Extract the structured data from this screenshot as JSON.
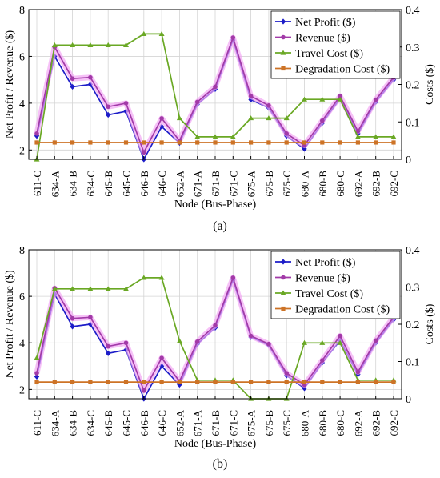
{
  "nodes": [
    "611-C",
    "634-A",
    "634-B",
    "634-C",
    "645-B",
    "645-C",
    "646-B",
    "646-C",
    "652-A",
    "671-A",
    "671-B",
    "671-C",
    "675-A",
    "675-B",
    "675-C",
    "680-A",
    "680-B",
    "680-C",
    "692-A",
    "692-B",
    "692-C"
  ],
  "colors": {
    "net_profit": "#1c1cc8",
    "revenue": "#a23aa8",
    "travel_cost": "#6aa824",
    "degradation_cost": "#cd7326",
    "glow": "#f2a6f4"
  },
  "chart_data": [
    {
      "type": "line",
      "panel_label": "(a)",
      "xlabel": "Node (Bus-Phase)",
      "ylabel_left": "Net Profit / Revenue ($)",
      "ylabel_right": "Costs ($)",
      "ylim_left": [
        1.6,
        8
      ],
      "ylim_right": [
        0,
        0.4
      ],
      "yticks_left": [
        "2",
        "4",
        "6",
        "8"
      ],
      "yticks_right": [
        "0",
        "0.1",
        "0.2",
        "0.3",
        "0.4"
      ],
      "grid": true,
      "legend": "top-right",
      "series": [
        {
          "name": "Net Profit ($)",
          "axis": "left",
          "marker": "diamond",
          "values": [
            2.6,
            6.0,
            4.7,
            4.8,
            3.5,
            3.65,
            1.6,
            3.0,
            2.3,
            3.95,
            4.6,
            6.7,
            4.15,
            3.8,
            2.6,
            2.05,
            3.15,
            4.2,
            2.7,
            4.05,
            5.0
          ]
        },
        {
          "name": "Revenue ($)",
          "axis": "left",
          "marker": "circle",
          "values": [
            2.7,
            6.4,
            5.05,
            5.1,
            3.85,
            4.0,
            1.9,
            3.35,
            2.4,
            4.05,
            4.7,
            6.8,
            4.3,
            3.9,
            2.7,
            2.2,
            3.25,
            4.3,
            2.8,
            4.15,
            5.1
          ]
        },
        {
          "name": "Travel Cost ($)",
          "axis": "right",
          "marker": "triangle",
          "values": [
            0.0,
            0.305,
            0.305,
            0.305,
            0.305,
            0.305,
            0.335,
            0.335,
            0.11,
            0.06,
            0.06,
            0.06,
            0.11,
            0.11,
            0.11,
            0.16,
            0.16,
            0.16,
            0.06,
            0.06,
            0.06
          ]
        },
        {
          "name": "Degradation Cost ($)",
          "axis": "right",
          "marker": "square",
          "values": [
            0.045,
            0.045,
            0.045,
            0.045,
            0.045,
            0.045,
            0.045,
            0.045,
            0.045,
            0.045,
            0.045,
            0.045,
            0.045,
            0.045,
            0.045,
            0.045,
            0.045,
            0.045,
            0.045,
            0.045,
            0.045
          ]
        }
      ]
    },
    {
      "type": "line",
      "panel_label": "(b)",
      "xlabel": "Node (Bus-Phase)",
      "ylabel_left": "Net Profit / Revenue ($)",
      "ylabel_right": "Costs ($)",
      "ylim_left": [
        1.6,
        8
      ],
      "ylim_right": [
        0,
        0.4
      ],
      "yticks_left": [
        "2",
        "4",
        "6",
        "8"
      ],
      "yticks_right": [
        "0",
        "0.1",
        "0.2",
        "0.3",
        "0.4"
      ],
      "grid": true,
      "legend": "top-right",
      "series": [
        {
          "name": "Net Profit ($)",
          "axis": "left",
          "marker": "diamond",
          "values": [
            2.55,
            6.1,
            4.7,
            4.8,
            3.55,
            3.7,
            1.6,
            3.0,
            2.2,
            3.95,
            4.65,
            6.7,
            4.25,
            3.9,
            2.6,
            2.05,
            3.15,
            4.1,
            2.65,
            4.0,
            5.0
          ]
        },
        {
          "name": "Revenue ($)",
          "axis": "left",
          "marker": "circle",
          "values": [
            2.7,
            6.35,
            5.05,
            5.1,
            3.85,
            4.0,
            1.95,
            3.35,
            2.35,
            4.05,
            4.75,
            6.8,
            4.3,
            3.95,
            2.7,
            2.2,
            3.25,
            4.3,
            2.75,
            4.1,
            5.1
          ]
        },
        {
          "name": "Travel Cost ($)",
          "axis": "right",
          "marker": "triangle",
          "values": [
            0.11,
            0.295,
            0.295,
            0.295,
            0.295,
            0.295,
            0.325,
            0.325,
            0.155,
            0.05,
            0.05,
            0.05,
            0.0,
            0.0,
            0.0,
            0.15,
            0.15,
            0.15,
            0.05,
            0.05,
            0.05
          ]
        },
        {
          "name": "Degradation Cost ($)",
          "axis": "right",
          "marker": "square",
          "values": [
            0.045,
            0.045,
            0.045,
            0.045,
            0.045,
            0.045,
            0.045,
            0.045,
            0.045,
            0.045,
            0.045,
            0.045,
            0.045,
            0.045,
            0.045,
            0.045,
            0.045,
            0.045,
            0.045,
            0.045,
            0.045
          ]
        }
      ]
    }
  ]
}
